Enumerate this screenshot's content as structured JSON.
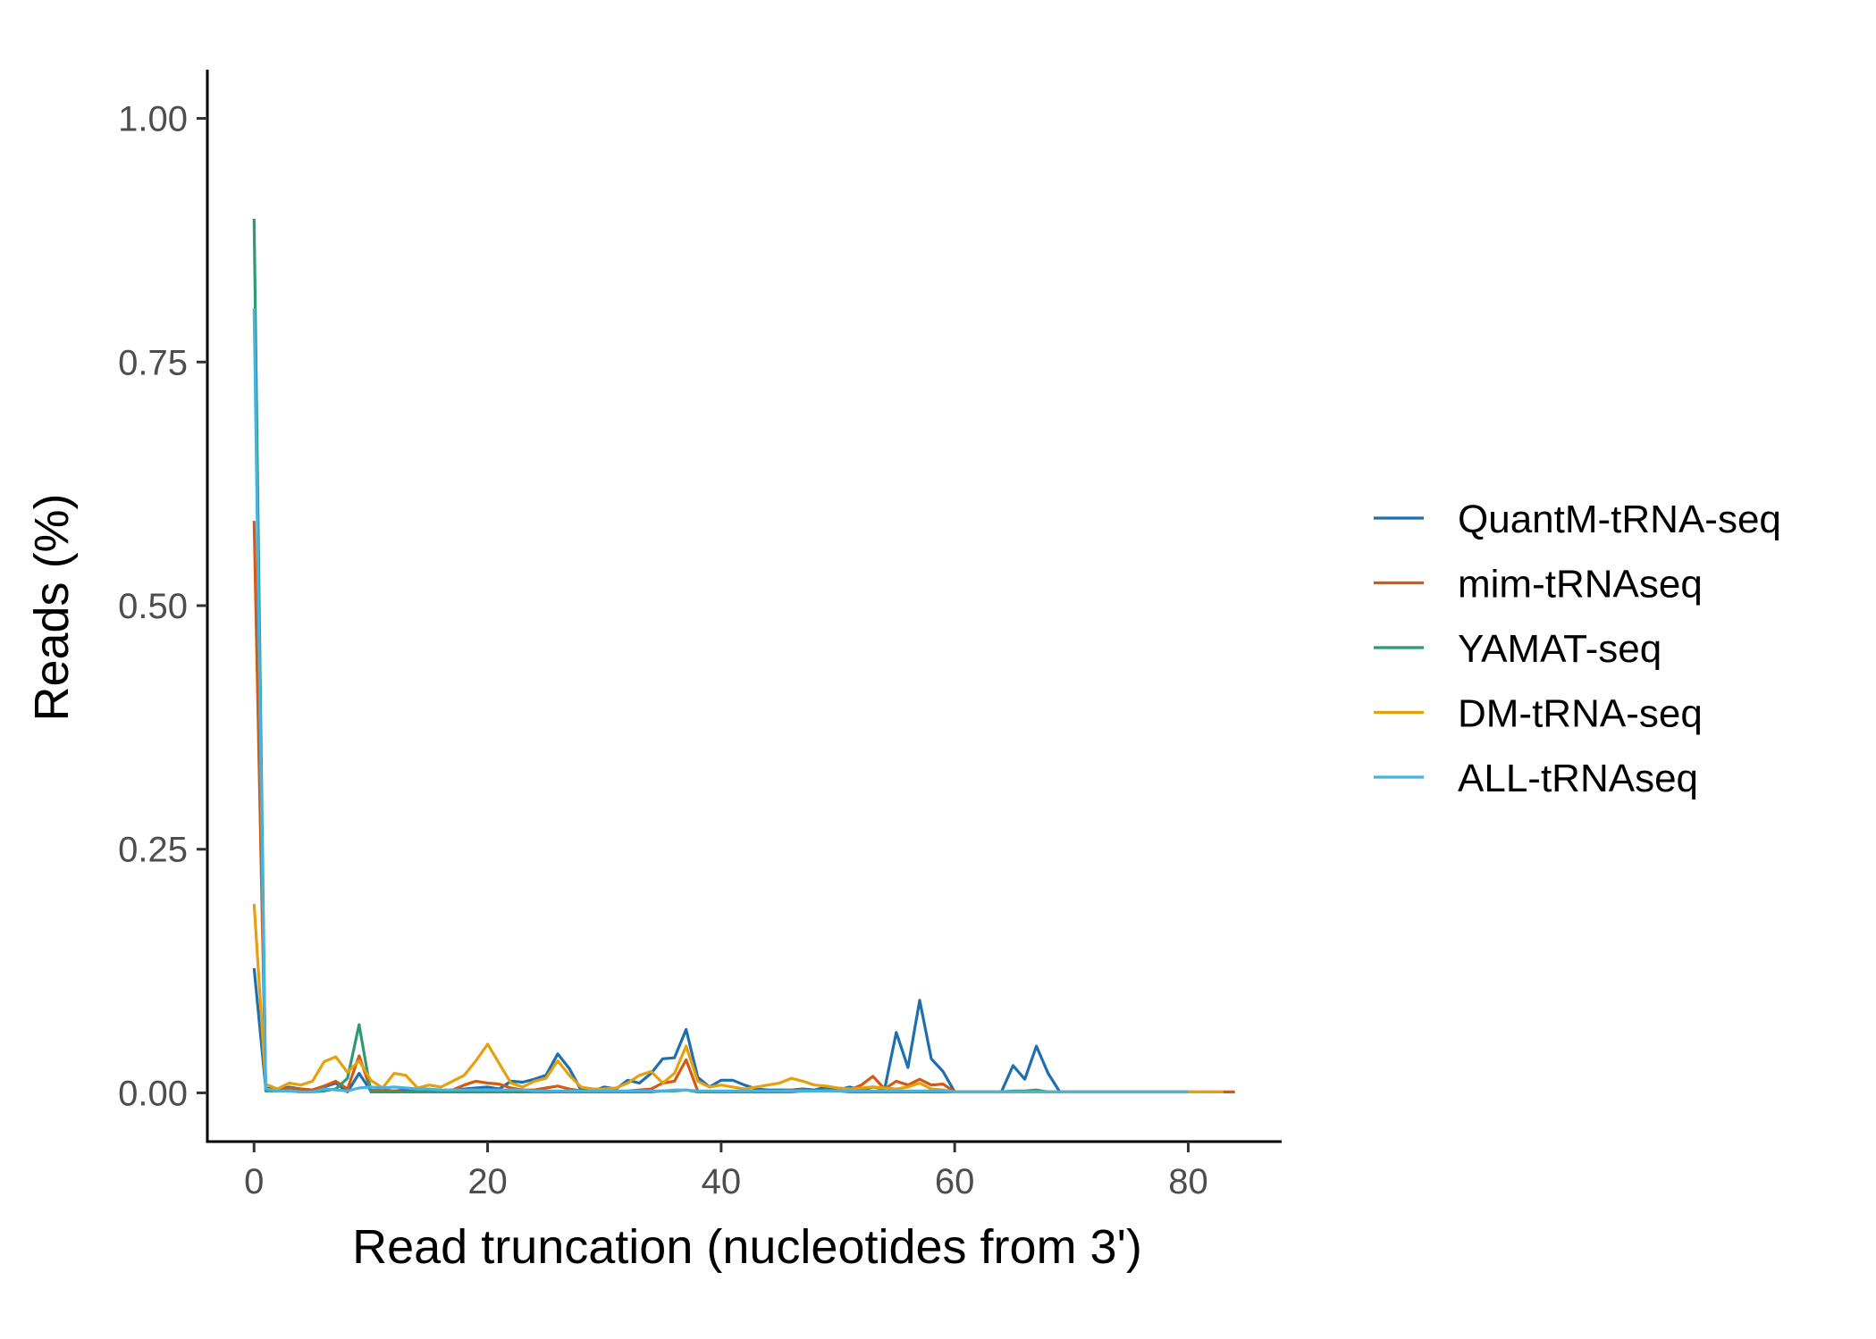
{
  "chart_data": {
    "type": "line",
    "title": "",
    "xlabel": "Read truncation (nucleotides from 3')",
    "ylabel": "Reads (%)",
    "xlim": [
      -4,
      88
    ],
    "ylim": [
      -0.05,
      1.05
    ],
    "x_ticks": [
      0,
      20,
      40,
      60,
      80
    ],
    "x_tick_labels": [
      "0",
      "20",
      "40",
      "60",
      "80"
    ],
    "y_ticks": [
      0,
      0.25,
      0.5,
      0.75,
      1.0
    ],
    "y_tick_labels": [
      "0.00",
      "0.25",
      "0.50",
      "0.75",
      "1.00"
    ],
    "grid": false,
    "legend_position": "right",
    "series": [
      {
        "name": "QuantM-tRNA-seq",
        "color": "#1f6fb0",
        "x": [
          0,
          1,
          2,
          3,
          4,
          5,
          6,
          7,
          8,
          9,
          10,
          11,
          12,
          13,
          14,
          15,
          16,
          17,
          18,
          19,
          20,
          21,
          22,
          23,
          24,
          25,
          26,
          27,
          28,
          29,
          30,
          31,
          32,
          33,
          34,
          35,
          36,
          37,
          38,
          39,
          40,
          41,
          42,
          43,
          44,
          45,
          46,
          47,
          48,
          49,
          50,
          51,
          52,
          53,
          54,
          55,
          56,
          57,
          58,
          59,
          60,
          61,
          62,
          63,
          64,
          65,
          66,
          67,
          68,
          69,
          70,
          71,
          72,
          73,
          74,
          75,
          76,
          77,
          78,
          79,
          80
        ],
        "y": [
          0.128,
          0.005,
          0.003,
          0.006,
          0.004,
          0.003,
          0.006,
          0.01,
          0.001,
          0.02,
          0.002,
          0.003,
          0.002,
          0.003,
          0.002,
          0.002,
          0.002,
          0.003,
          0.004,
          0.005,
          0.006,
          0.004,
          0.012,
          0.011,
          0.014,
          0.018,
          0.04,
          0.025,
          0.003,
          0.002,
          0.006,
          0.004,
          0.013,
          0.01,
          0.02,
          0.035,
          0.036,
          0.065,
          0.016,
          0.006,
          0.013,
          0.013,
          0.008,
          0.004,
          0.003,
          0.003,
          0.003,
          0.004,
          0.003,
          0.006,
          0.003,
          0.006,
          0.003,
          0.006,
          0.004,
          0.062,
          0.026,
          0.095,
          0.035,
          0.022,
          0.001,
          0.001,
          0.001,
          0.001,
          0.001,
          0.028,
          0.014,
          0.048,
          0.02,
          0.001,
          0.001,
          0.001,
          0.001,
          0.001,
          0.001,
          0.001,
          0.001,
          0.001,
          0.001,
          0.001,
          0.001
        ]
      },
      {
        "name": "mim-tRNAseq",
        "color": "#d45a12",
        "x": [
          0,
          1,
          2,
          3,
          4,
          5,
          6,
          7,
          8,
          9,
          10,
          11,
          12,
          13,
          14,
          15,
          16,
          17,
          18,
          19,
          20,
          21,
          22,
          23,
          24,
          25,
          26,
          27,
          28,
          29,
          30,
          31,
          32,
          33,
          34,
          35,
          36,
          37,
          38,
          39,
          40,
          41,
          42,
          43,
          44,
          45,
          46,
          47,
          48,
          49,
          50,
          51,
          52,
          53,
          54,
          55,
          56,
          57,
          58,
          59,
          60,
          61,
          62,
          63,
          64,
          65,
          66,
          67,
          68,
          69,
          70,
          71,
          72,
          73,
          74,
          75,
          76,
          77,
          78,
          79,
          80,
          81,
          82,
          83,
          84
        ],
        "y": [
          0.587,
          0.004,
          0.003,
          0.005,
          0.004,
          0.003,
          0.007,
          0.012,
          0.004,
          0.038,
          0.003,
          0.002,
          0.002,
          0.001,
          0.001,
          0.001,
          0.002,
          0.003,
          0.008,
          0.012,
          0.01,
          0.009,
          0.005,
          0.003,
          0.003,
          0.005,
          0.007,
          0.004,
          0.002,
          0.001,
          0.001,
          0.001,
          0.002,
          0.003,
          0.004,
          0.01,
          0.012,
          0.034,
          0.002,
          0.001,
          0.001,
          0.001,
          0.001,
          0.001,
          0.001,
          0.002,
          0.003,
          0.003,
          0.002,
          0.002,
          0.002,
          0.003,
          0.008,
          0.017,
          0.004,
          0.012,
          0.008,
          0.014,
          0.008,
          0.009,
          0.001,
          0.001,
          0.001,
          0.001,
          0.001,
          0.001,
          0.001,
          0.002,
          0.001,
          0.001,
          0.001,
          0.001,
          0.001,
          0.001,
          0.001,
          0.001,
          0.001,
          0.001,
          0.001,
          0.001,
          0.001,
          0.001,
          0.001,
          0.001,
          0.001
        ]
      },
      {
        "name": "YAMAT-seq",
        "color": "#2e9a74",
        "x": [
          0,
          1,
          2,
          3,
          4,
          5,
          6,
          7,
          8,
          9,
          10,
          11,
          12,
          13,
          14,
          15,
          16,
          17,
          18,
          19,
          20,
          21,
          22,
          23,
          24,
          25,
          26,
          27,
          28,
          29,
          30,
          31,
          32,
          33,
          34,
          35,
          36,
          37,
          38,
          39,
          40,
          41,
          42,
          43,
          44,
          45,
          46,
          47,
          48,
          49,
          50,
          51,
          52,
          53,
          54,
          55,
          56,
          57,
          58,
          59,
          60,
          61,
          62,
          63,
          64,
          65,
          66,
          67,
          68,
          69,
          70,
          71,
          72,
          73,
          74,
          75,
          76,
          77,
          78,
          79,
          80
        ],
        "y": [
          0.897,
          0.002,
          0.002,
          0.002,
          0.001,
          0.001,
          0.002,
          0.004,
          0.015,
          0.07,
          0.001,
          0.001,
          0.001,
          0.001,
          0.001,
          0.001,
          0.001,
          0.001,
          0.001,
          0.001,
          0.001,
          0.001,
          0.001,
          0.001,
          0.001,
          0.001,
          0.001,
          0.001,
          0.001,
          0.001,
          0.001,
          0.001,
          0.001,
          0.001,
          0.001,
          0.002,
          0.002,
          0.003,
          0.001,
          0.001,
          0.001,
          0.001,
          0.001,
          0.001,
          0.001,
          0.001,
          0.001,
          0.002,
          0.002,
          0.003,
          0.002,
          0.001,
          0.001,
          0.001,
          0.001,
          0.001,
          0.001,
          0.001,
          0.001,
          0.001,
          0.001,
          0.001,
          0.001,
          0.001,
          0.001,
          0.002,
          0.002,
          0.003,
          0.001,
          0.001,
          0.001,
          0.001,
          0.001,
          0.001,
          0.001,
          0.001,
          0.001,
          0.001,
          0.001,
          0.001,
          0.001
        ]
      },
      {
        "name": "DM-tRNA-seq",
        "color": "#e5a10d",
        "x": [
          0,
          1,
          2,
          3,
          4,
          5,
          6,
          7,
          8,
          9,
          10,
          11,
          12,
          13,
          14,
          15,
          16,
          17,
          18,
          19,
          20,
          21,
          22,
          23,
          24,
          25,
          26,
          27,
          28,
          29,
          30,
          31,
          32,
          33,
          34,
          35,
          36,
          37,
          38,
          39,
          40,
          41,
          42,
          43,
          44,
          45,
          46,
          47,
          48,
          49,
          50,
          51,
          52,
          53,
          54,
          55,
          56,
          57,
          58,
          59,
          60,
          61,
          62,
          63,
          64,
          65,
          66,
          67,
          68,
          69,
          70,
          71,
          72,
          73,
          74,
          75,
          76,
          77,
          78,
          79,
          80,
          81,
          82,
          83
        ],
        "y": [
          0.194,
          0.009,
          0.004,
          0.01,
          0.008,
          0.012,
          0.032,
          0.037,
          0.021,
          0.033,
          0.013,
          0.005,
          0.02,
          0.018,
          0.005,
          0.008,
          0.006,
          0.012,
          0.018,
          0.033,
          0.05,
          0.03,
          0.01,
          0.006,
          0.012,
          0.015,
          0.033,
          0.018,
          0.006,
          0.004,
          0.004,
          0.005,
          0.01,
          0.018,
          0.022,
          0.01,
          0.02,
          0.048,
          0.012,
          0.006,
          0.008,
          0.006,
          0.004,
          0.006,
          0.008,
          0.01,
          0.015,
          0.012,
          0.008,
          0.007,
          0.005,
          0.004,
          0.005,
          0.006,
          0.005,
          0.004,
          0.006,
          0.01,
          0.004,
          0.003,
          0.001,
          0.001,
          0.001,
          0.001,
          0.001,
          0.001,
          0.001,
          0.001,
          0.001,
          0.001,
          0.001,
          0.001,
          0.001,
          0.001,
          0.001,
          0.001,
          0.001,
          0.001,
          0.001,
          0.001,
          0.001,
          0.001,
          0.001,
          0.001
        ]
      },
      {
        "name": "ALL-tRNAseq",
        "color": "#45b4e4",
        "x": [
          0,
          1,
          2,
          3,
          4,
          5,
          6,
          7,
          8,
          9,
          10,
          11,
          12,
          13,
          14,
          15,
          16,
          17,
          18,
          19,
          20,
          21,
          22,
          23,
          24,
          25,
          26,
          27,
          28,
          29,
          30,
          31,
          32,
          33,
          34,
          35,
          36,
          37,
          38,
          39,
          40,
          41,
          42,
          43,
          44,
          45,
          46,
          47,
          48,
          49,
          50,
          51,
          52,
          53,
          54,
          55,
          56,
          57,
          58,
          59,
          60,
          61,
          62,
          63,
          64,
          65,
          66,
          67,
          68,
          69,
          70,
          71,
          72,
          73,
          74,
          75,
          76,
          77,
          78,
          79,
          80
        ],
        "y": [
          0.805,
          0.004,
          0.002,
          0.002,
          0.001,
          0.001,
          0.004,
          0.003,
          0.002,
          0.005,
          0.006,
          0.005,
          0.006,
          0.005,
          0.004,
          0.004,
          0.003,
          0.003,
          0.003,
          0.003,
          0.003,
          0.003,
          0.003,
          0.003,
          0.002,
          0.002,
          0.002,
          0.002,
          0.002,
          0.002,
          0.002,
          0.002,
          0.002,
          0.002,
          0.002,
          0.002,
          0.003,
          0.003,
          0.002,
          0.002,
          0.002,
          0.002,
          0.002,
          0.002,
          0.002,
          0.002,
          0.002,
          0.002,
          0.002,
          0.002,
          0.002,
          0.002,
          0.002,
          0.002,
          0.002,
          0.002,
          0.002,
          0.002,
          0.002,
          0.002,
          0.001,
          0.001,
          0.001,
          0.001,
          0.001,
          0.001,
          0.001,
          0.001,
          0.001,
          0.001,
          0.001,
          0.001,
          0.001,
          0.001,
          0.001,
          0.001,
          0.001,
          0.001,
          0.001,
          0.001,
          0.001
        ]
      }
    ]
  }
}
